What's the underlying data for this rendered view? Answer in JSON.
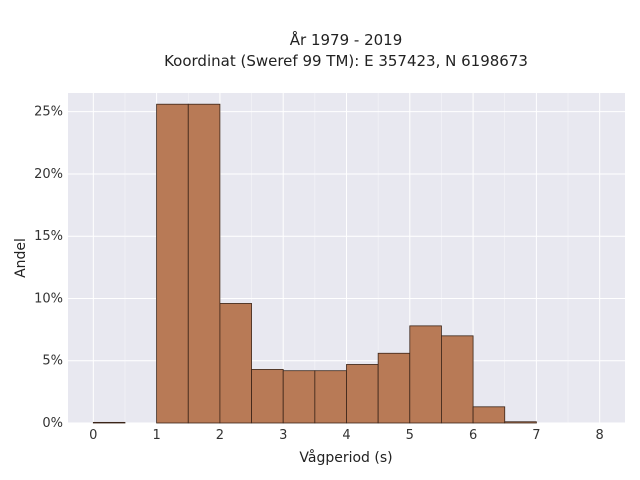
{
  "chart_data": {
    "type": "bar",
    "title": "År 1979 - 2019",
    "subtitle": "Koordinat (Sweref 99 TM): E 357423, N 6198673",
    "xlabel": "Vågperiod (s)",
    "ylabel": "Andel",
    "xlim": [
      -0.4,
      8.4
    ],
    "ylim": [
      0,
      26.5
    ],
    "x_ticks": [
      0,
      1,
      2,
      3,
      4,
      5,
      6,
      7,
      8
    ],
    "y_ticks": [
      0,
      5,
      10,
      15,
      20,
      25
    ],
    "y_tick_labels": [
      "0%",
      "5%",
      "10%",
      "15%",
      "20%",
      "25%"
    ],
    "bin_width": 0.5,
    "bins": [
      {
        "start": 0.0,
        "value": 0.05
      },
      {
        "start": 1.0,
        "value": 25.6
      },
      {
        "start": 1.5,
        "value": 25.6
      },
      {
        "start": 2.0,
        "value": 9.6
      },
      {
        "start": 2.5,
        "value": 4.3
      },
      {
        "start": 3.0,
        "value": 4.2
      },
      {
        "start": 3.5,
        "value": 4.2
      },
      {
        "start": 4.0,
        "value": 4.7
      },
      {
        "start": 4.5,
        "value": 5.6
      },
      {
        "start": 5.0,
        "value": 7.8
      },
      {
        "start": 5.5,
        "value": 7.0
      },
      {
        "start": 6.0,
        "value": 1.3
      },
      {
        "start": 6.5,
        "value": 0.1
      }
    ],
    "grid": true,
    "colors": {
      "bar_fill": "#b87a56",
      "bar_stroke": "#3a2418",
      "plot_bg": "#e8e8f0",
      "grid": "#ffffff"
    }
  }
}
